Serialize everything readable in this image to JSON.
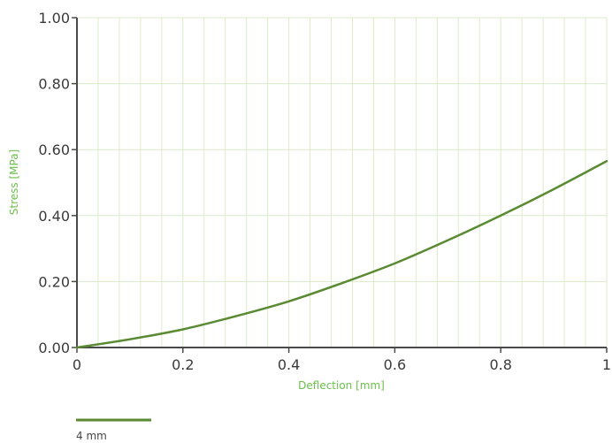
{
  "chart_data": {
    "type": "line",
    "xlabel": "Deflection [mm]",
    "ylabel": "Stress [MPa]",
    "xlim": [
      0,
      1
    ],
    "ylim": [
      0,
      1
    ],
    "x_ticks": [
      "0",
      "0.2",
      "0.4",
      "0.6",
      "0.8",
      "1"
    ],
    "y_ticks": [
      "0.00",
      "0.20",
      "0.40",
      "0.60",
      "0.80",
      "1.00"
    ],
    "x_minor_step": 0.04,
    "y_grid_step": 0.2,
    "grid": true,
    "legend_position": "bottom-left",
    "series": [
      {
        "name": "4 mm",
        "color": "#5a8a32",
        "x": [
          0,
          0.1,
          0.2,
          0.3,
          0.4,
          0.5,
          0.6,
          0.7,
          0.8,
          0.9,
          1.0
        ],
        "y": [
          0,
          0.025,
          0.055,
          0.095,
          0.14,
          0.195,
          0.255,
          0.325,
          0.4,
          0.48,
          0.565
        ]
      }
    ]
  },
  "colors": {
    "axis_title": "#6abf4b",
    "grid": "#dcebc9",
    "axis": "#4a4a4a"
  }
}
